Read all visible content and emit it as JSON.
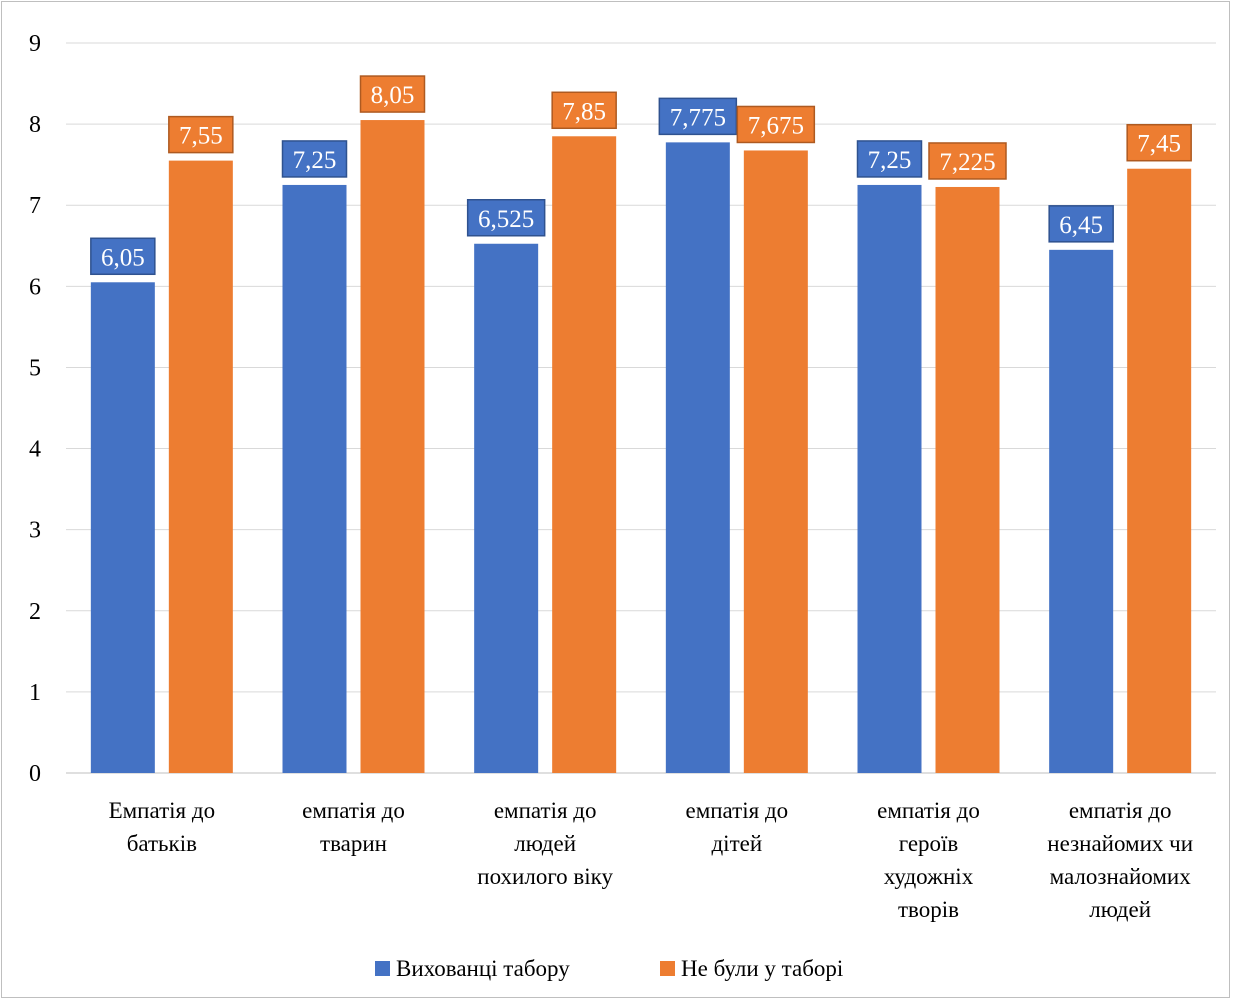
{
  "chart_data": {
    "type": "bar",
    "categories": [
      [
        "Емпатія до",
        "батьків"
      ],
      [
        "емпатія до",
        "тварин"
      ],
      [
        "емпатія до",
        "людей",
        "похилого віку"
      ],
      [
        "емпатія до",
        "дітей"
      ],
      [
        "емпатія до",
        "героїв",
        "художніх",
        "творів"
      ],
      [
        "емпатія до",
        "незнайомих чи",
        "малознайомих",
        "людей"
      ]
    ],
    "series": [
      {
        "name": "Вихованці табору",
        "color": "#4472c4",
        "label_border": "#2f528f",
        "values": [
          6.05,
          7.25,
          6.525,
          7.775,
          7.25,
          6.45
        ],
        "labels": [
          "6,05",
          "7,25",
          "6,525",
          "7,775",
          "7,25",
          "6,45"
        ]
      },
      {
        "name": "Не були у таборі",
        "color": "#ed7d31",
        "label_border": "#ae5a21",
        "values": [
          7.55,
          8.05,
          7.85,
          7.675,
          7.225,
          7.45
        ],
        "labels": [
          "7,55",
          "8,05",
          "7,85",
          "7,675",
          "7,225",
          "7,45"
        ]
      }
    ],
    "ylim": [
      0,
      9
    ],
    "yticks": [
      "0",
      "1",
      "2",
      "3",
      "4",
      "5",
      "6",
      "7",
      "8",
      "9"
    ],
    "grid": true,
    "legend_position": "bottom",
    "gridline_color": "#d9d9d9",
    "axis_color": "#bfbfbf"
  }
}
